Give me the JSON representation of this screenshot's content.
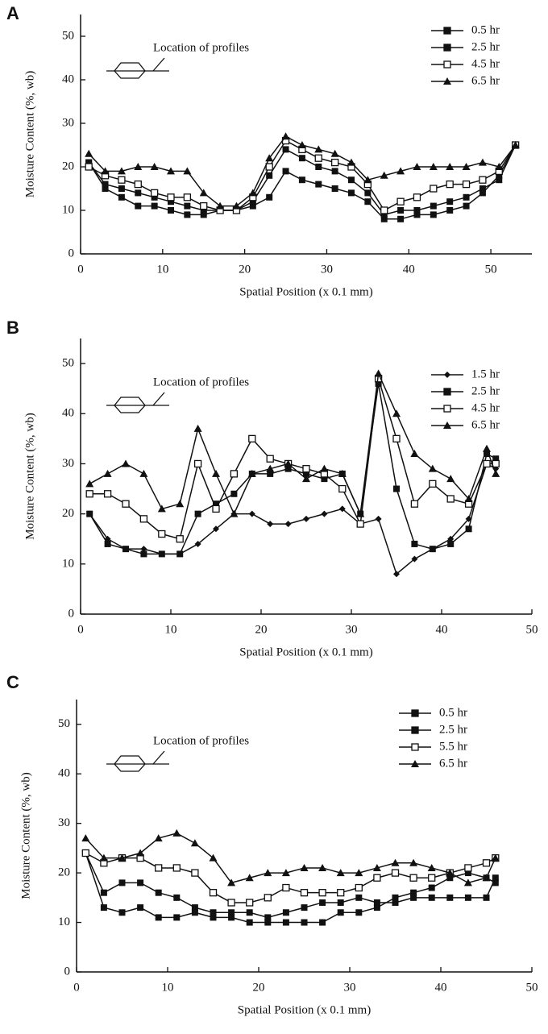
{
  "chart_data": [
    {
      "type": "line",
      "label": "A",
      "annotation": "Location of profiles",
      "xlabel": "Spatial Position (x 0.1 mm)",
      "ylabel": "Moisture Content (%, wb)",
      "xlim": [
        0,
        55
      ],
      "ylim": [
        0,
        55
      ],
      "xticks": [
        0,
        10,
        20,
        30,
        40,
        50
      ],
      "yticks": [
        0,
        10,
        20,
        30,
        40,
        50
      ],
      "x": [
        1,
        3,
        5,
        7,
        9,
        11,
        13,
        15,
        17,
        19,
        21,
        23,
        25,
        27,
        29,
        31,
        33,
        35,
        37,
        39,
        41,
        43,
        45,
        47,
        49,
        51,
        53
      ],
      "series": [
        {
          "name": "0.5 hr",
          "color": "#111111",
          "marker": "square",
          "values": [
            21,
            15,
            13,
            11,
            11,
            10,
            9,
            9,
            10,
            10,
            11,
            13,
            19,
            17,
            16,
            15,
            14,
            12,
            8,
            8,
            9,
            9,
            10,
            11,
            14,
            18,
            25
          ]
        },
        {
          "name": "2.5 hr",
          "color": "#111111",
          "marker": "square",
          "values": [
            21,
            16,
            15,
            14,
            13,
            12,
            11,
            10,
            10,
            10,
            12,
            18,
            24,
            22,
            20,
            19,
            17,
            14,
            9,
            10,
            10,
            11,
            12,
            13,
            15,
            17,
            25
          ]
        },
        {
          "name": "4.5 hr",
          "color": "#111111",
          "marker": "open-square",
          "values": [
            20,
            18,
            17,
            16,
            14,
            13,
            13,
            11,
            10,
            10,
            13,
            20,
            26,
            24,
            22,
            21,
            20,
            16,
            10,
            12,
            13,
            15,
            16,
            16,
            17,
            19,
            25
          ]
        },
        {
          "name": "6.5 hr",
          "color": "#111111",
          "marker": "triangle",
          "values": [
            23,
            19,
            19,
            20,
            20,
            19,
            19,
            14,
            11,
            11,
            14,
            22,
            27,
            25,
            24,
            23,
            21,
            17,
            18,
            19,
            20,
            20,
            20,
            20,
            21,
            20,
            25
          ]
        }
      ]
    },
    {
      "type": "line",
      "label": "B",
      "annotation": "Location of profiles",
      "xlabel": "Spatial Position (x 0.1 mm)",
      "ylabel": "Moisture Content (%, wb)",
      "xlim": [
        0,
        50
      ],
      "ylim": [
        0,
        55
      ],
      "xticks": [
        0,
        10,
        20,
        30,
        40,
        50
      ],
      "yticks": [
        0,
        10,
        20,
        30,
        40,
        50
      ],
      "x": [
        1,
        3,
        5,
        7,
        9,
        11,
        13,
        15,
        17,
        19,
        21,
        23,
        25,
        27,
        29,
        31,
        33,
        35,
        37,
        39,
        41,
        43,
        45,
        46
      ],
      "series": [
        {
          "name": "1.5 hr",
          "color": "#111111",
          "marker": "diamond",
          "values": [
            20,
            15,
            13,
            13,
            12,
            12,
            14,
            17,
            20,
            20,
            18,
            18,
            19,
            20,
            21,
            18,
            19,
            8,
            11,
            13,
            15,
            19,
            30,
            29
          ]
        },
        {
          "name": "2.5 hr",
          "color": "#111111",
          "marker": "square",
          "values": [
            20,
            14,
            13,
            12,
            12,
            12,
            20,
            22,
            24,
            28,
            28,
            29,
            28,
            27,
            28,
            20,
            46,
            25,
            14,
            13,
            14,
            17,
            32,
            31
          ]
        },
        {
          "name": "4.5 hr",
          "color": "#111111",
          "marker": "open-square",
          "values": [
            24,
            24,
            22,
            19,
            16,
            15,
            30,
            21,
            28,
            35,
            31,
            30,
            29,
            28,
            25,
            18,
            47,
            35,
            22,
            26,
            23,
            22,
            30,
            30
          ]
        },
        {
          "name": "6.5 hr",
          "color": "#111111",
          "marker": "triangle",
          "values": [
            26,
            28,
            30,
            28,
            21,
            22,
            37,
            28,
            20,
            28,
            29,
            30,
            27,
            29,
            28,
            20,
            48,
            40,
            32,
            29,
            27,
            23,
            33,
            28
          ]
        }
      ]
    },
    {
      "type": "line",
      "label": "C",
      "annotation": "Location of profiles",
      "xlabel": "Spatial Position (x 0.1 mm)",
      "ylabel": "Moisture Content (%, wb)",
      "xlim": [
        0,
        50
      ],
      "ylim": [
        0,
        55
      ],
      "xticks": [
        0,
        10,
        20,
        30,
        40,
        50
      ],
      "yticks": [
        0,
        10,
        20,
        30,
        40,
        50
      ],
      "x": [
        1,
        3,
        5,
        7,
        9,
        11,
        13,
        15,
        17,
        19,
        21,
        23,
        25,
        27,
        29,
        31,
        33,
        35,
        37,
        39,
        41,
        43,
        45,
        46
      ],
      "series": [
        {
          "name": "0.5 hr",
          "color": "#111111",
          "marker": "square",
          "values": [
            24,
            13,
            12,
            13,
            11,
            11,
            12,
            11,
            11,
            10,
            10,
            10,
            10,
            10,
            12,
            12,
            13,
            15,
            16,
            17,
            19,
            20,
            19,
            18
          ]
        },
        {
          "name": "2.5 hr",
          "color": "#111111",
          "marker": "square",
          "values": [
            24,
            16,
            18,
            18,
            16,
            15,
            13,
            12,
            12,
            12,
            11,
            12,
            13,
            14,
            14,
            15,
            14,
            14,
            15,
            15,
            15,
            15,
            15,
            19
          ]
        },
        {
          "name": "5.5 hr",
          "color": "#111111",
          "marker": "open-square",
          "values": [
            24,
            22,
            23,
            23,
            21,
            21,
            20,
            16,
            14,
            14,
            15,
            17,
            16,
            16,
            16,
            17,
            19,
            20,
            19,
            19,
            20,
            21,
            22,
            23
          ]
        },
        {
          "name": "6.5 hr",
          "color": "#111111",
          "marker": "triangle",
          "values": [
            27,
            23,
            23,
            24,
            27,
            28,
            26,
            23,
            18,
            19,
            20,
            20,
            21,
            21,
            20,
            20,
            21,
            22,
            22,
            21,
            20,
            18,
            19,
            23
          ]
        }
      ]
    }
  ]
}
